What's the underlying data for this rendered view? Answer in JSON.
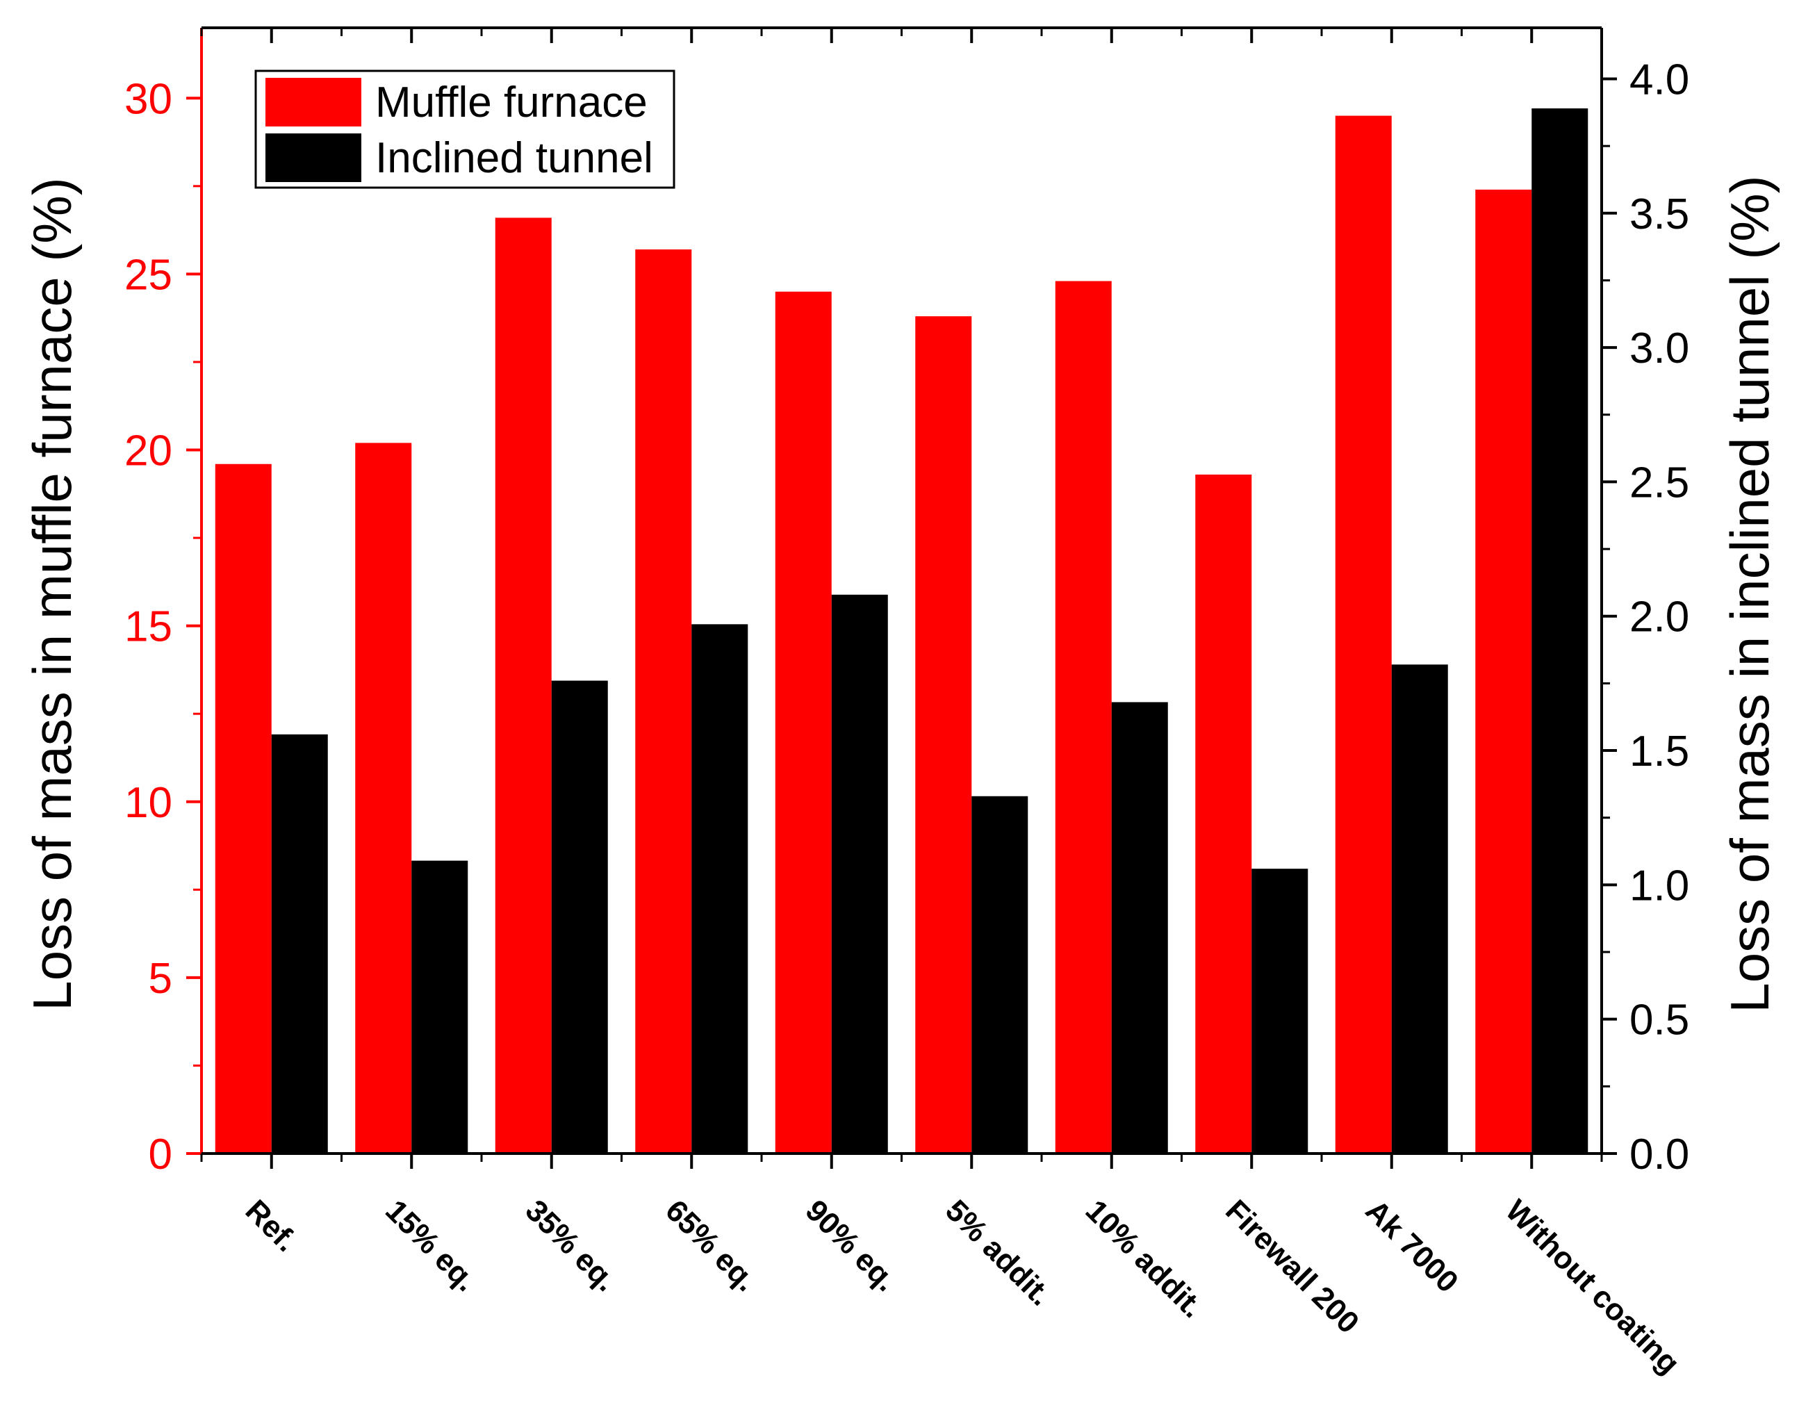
{
  "chart_data": {
    "type": "bar",
    "categories": [
      "Ref.",
      "15% eq.",
      "35% eq.",
      "65% eq.",
      "90% eq.",
      "5% addit.",
      "10% addit.",
      "Firewall 200",
      "Ak 7000",
      "Without coating"
    ],
    "series": [
      {
        "name": "Muffle furnace",
        "axis": "left",
        "color": "#ff0000",
        "values": [
          19.6,
          20.2,
          26.6,
          25.7,
          24.5,
          23.8,
          24.8,
          19.3,
          29.5,
          27.4
        ]
      },
      {
        "name": "Inclined tunnel",
        "axis": "right",
        "color": "#000000",
        "values": [
          1.56,
          1.09,
          1.76,
          1.97,
          2.08,
          1.33,
          1.68,
          1.06,
          1.82,
          3.89
        ]
      }
    ],
    "ylabel": "Loss of mass in muffle furnace (%)",
    "ylabel_right": "Loss of mass in inclined tunnel (%)",
    "xlabel": "",
    "ylim": [
      0,
      32
    ],
    "ylim_right": [
      0,
      4.19
    ],
    "yticks": [
      "0",
      "5",
      "10",
      "15",
      "20",
      "25",
      "30"
    ],
    "yticks_right": [
      "0.0",
      "0.5",
      "1.0",
      "1.5",
      "2.0",
      "2.5",
      "3.0",
      "3.5",
      "4.0"
    ],
    "left_axis_color": "#ff0000",
    "right_axis_color": "#000000",
    "grid": false,
    "legend_position": "top-left"
  }
}
